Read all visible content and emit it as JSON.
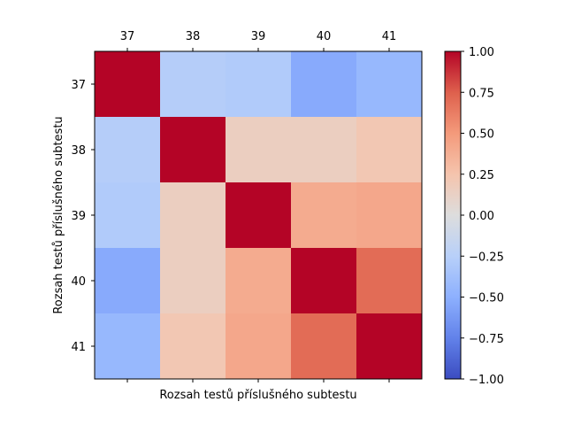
{
  "chart_data": {
    "type": "heatmap",
    "title": "",
    "xlabel": "Rozsah testů příslušného subtestu",
    "ylabel": "Rozsah testů příslušného subtestu",
    "x_categories": [
      "37",
      "38",
      "39",
      "40",
      "41"
    ],
    "y_categories": [
      "37",
      "38",
      "39",
      "40",
      "41"
    ],
    "values": [
      [
        1.0,
        -0.27,
        -0.29,
        -0.53,
        -0.44
      ],
      [
        -0.27,
        1.0,
        0.15,
        0.15,
        0.22
      ],
      [
        -0.29,
        0.15,
        1.0,
        0.4,
        0.42
      ],
      [
        -0.53,
        0.15,
        0.4,
        1.0,
        0.7
      ],
      [
        -0.44,
        0.22,
        0.42,
        0.7,
        1.0
      ]
    ],
    "colorbar": {
      "min": -1.0,
      "max": 1.0,
      "ticks": [
        "1.00",
        "0.75",
        "0.50",
        "0.25",
        "0.00",
        "−0.25",
        "−0.50",
        "−0.75",
        "−1.00"
      ],
      "colormap": "coolwarm"
    },
    "x_tick_position": "top",
    "grid": false
  }
}
